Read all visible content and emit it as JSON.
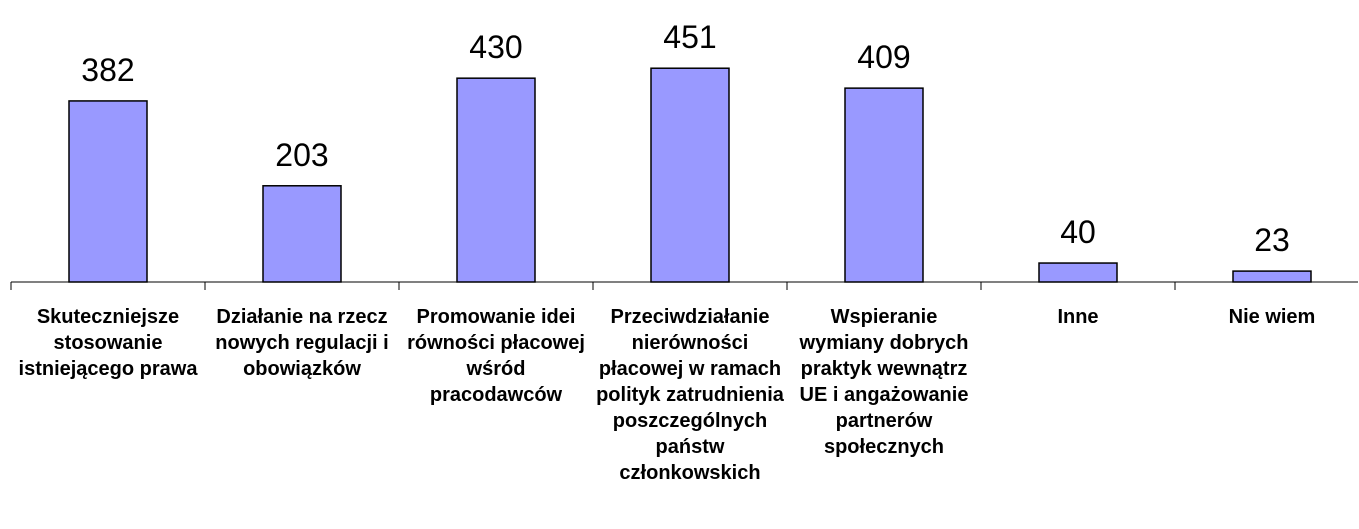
{
  "chart_data": {
    "type": "bar",
    "categories": [
      "Skuteczniejsze stosowanie istniejącego prawa",
      "Działanie na rzecz nowych regulacji i obowiązków",
      "Promowanie idei równości płacowej wśród pracodawców",
      "Przeciwdziałanie nierówności płacowej w ramach polityk zatrudnienia poszczególnych państw członkowskich",
      "Wspieranie wymiany dobrych praktyk wewnątrz UE i angażowanie partnerów społecznych",
      "Inne",
      "Nie wiem"
    ],
    "values": [
      382,
      203,
      430,
      451,
      409,
      40,
      23
    ],
    "color": "#9999ff",
    "ylim": [
      0,
      500
    ]
  }
}
